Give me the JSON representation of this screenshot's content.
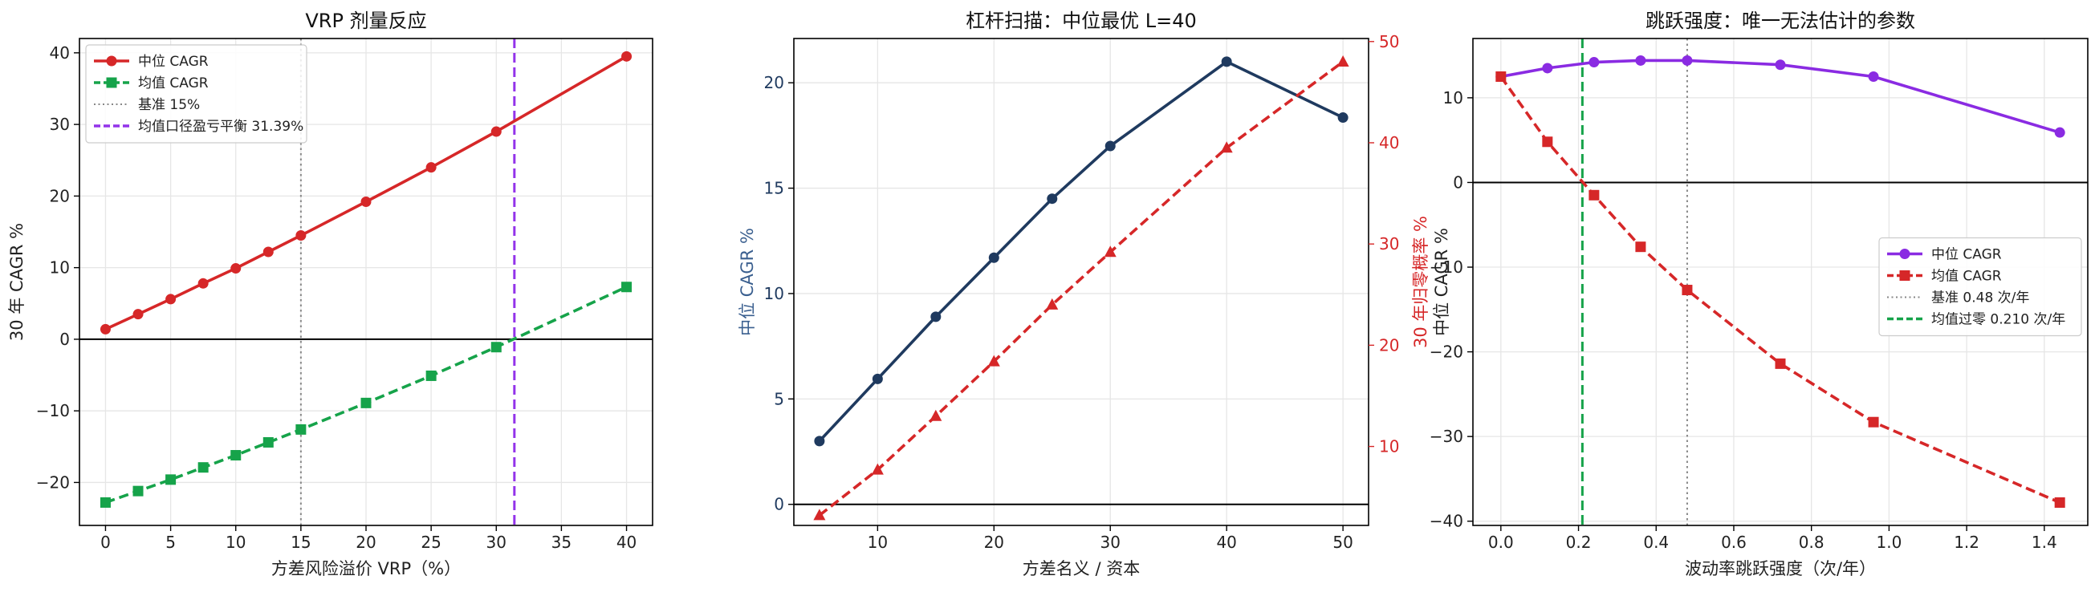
{
  "chart_data": [
    {
      "type": "line",
      "title": "VRP 剂量反应",
      "xlabel": "方差风险溢价 VRP（%）",
      "ylabel": "30 年 CAGR %",
      "xlim": [
        -2,
        42
      ],
      "ylim": [
        -26,
        42
      ],
      "xticks": [
        "0",
        "5",
        "10",
        "15",
        "20",
        "25",
        "30",
        "35",
        "40"
      ],
      "yticks": [
        "−20",
        "−10",
        "0",
        "10",
        "20",
        "30",
        "40"
      ],
      "grid": true,
      "legend_position": "top-left",
      "x": [
        0,
        2.5,
        5,
        7.5,
        10,
        12.5,
        15,
        20,
        25,
        30,
        40
      ],
      "series": [
        {
          "name": "中位 CAGR",
          "color": "#d62728",
          "style": "solid",
          "marker": "circle",
          "values": [
            1.4,
            3.5,
            5.6,
            7.8,
            9.9,
            12.2,
            14.5,
            19.2,
            24.0,
            29.0,
            39.5
          ]
        },
        {
          "name": "均值 CAGR",
          "color": "#16a34a",
          "style": "dashed",
          "marker": "square",
          "values": [
            -22.8,
            -21.2,
            -19.6,
            -17.9,
            -16.2,
            -14.4,
            -12.6,
            -8.9,
            -5.1,
            -1.1,
            7.3
          ]
        }
      ],
      "reference_lines": [
        {
          "name": "基准 15%",
          "orientation": "vertical",
          "value": 15,
          "color": "#888888",
          "style": "dotted"
        },
        {
          "name": "均值口径盈亏平衡 31.39%",
          "orientation": "vertical",
          "value": 31.39,
          "color": "#9333ea",
          "style": "dashed"
        },
        {
          "name": "",
          "orientation": "horizontal",
          "value": 0,
          "color": "#000000",
          "style": "solid"
        }
      ]
    },
    {
      "type": "line",
      "title": "杠杆扫描：中位最优 L=40",
      "xlabel": "方差名义 / 资本",
      "ylabel": "中位 CAGR %",
      "ylabel_right": "30 年归零概率 %",
      "xlim": [
        2.8,
        52.2
      ],
      "ylim": [
        -1.0,
        22.1
      ],
      "ylim_right": [
        2.2,
        50.3
      ],
      "xticks": [
        "10",
        "20",
        "30",
        "40",
        "50"
      ],
      "yticks": [
        "0",
        "5",
        "10",
        "15",
        "20"
      ],
      "yticks_right": [
        "10",
        "20",
        "30",
        "40",
        "50"
      ],
      "grid": true,
      "x": [
        5,
        10,
        15,
        20,
        25,
        30,
        40,
        50
      ],
      "series": [
        {
          "name": "中位 CAGR",
          "axis": "left",
          "color": "#1f3a5f",
          "style": "solid",
          "marker": "circle",
          "values": [
            3.0,
            5.95,
            8.9,
            11.7,
            14.5,
            17.0,
            21.0,
            18.35
          ]
        },
        {
          "name": "30 年归零概率",
          "axis": "right",
          "color": "#d62728",
          "style": "dashed",
          "marker": "triangle",
          "values": [
            3.2,
            7.7,
            13.0,
            18.4,
            24.0,
            29.2,
            39.5,
            48.0
          ]
        }
      ],
      "reference_lines": [
        {
          "name": "",
          "orientation": "horizontal",
          "value": 0,
          "color": "#000000",
          "style": "solid"
        }
      ]
    },
    {
      "type": "line",
      "title": "跳跃强度：唯一无法估计的参数",
      "xlabel": "波动率跳跃强度（次/年）",
      "ylabel": "中位 CAGR %",
      "xlim": [
        -0.072,
        1.512
      ],
      "ylim": [
        -40.5,
        17.0
      ],
      "xticks": [
        "0.0",
        "0.2",
        "0.4",
        "0.6",
        "0.8",
        "1.0",
        "1.2",
        "1.4"
      ],
      "yticks": [
        "−40",
        "−30",
        "−20",
        "−10",
        "0",
        "10"
      ],
      "grid": true,
      "legend_position": "center-right",
      "x": [
        0.0,
        0.12,
        0.24,
        0.36,
        0.48,
        0.72,
        0.96,
        1.44
      ],
      "series": [
        {
          "name": "中位 CAGR",
          "color": "#8a2be2",
          "style": "solid",
          "marker": "circle",
          "values": [
            12.5,
            13.5,
            14.2,
            14.4,
            14.4,
            13.9,
            12.5,
            5.9
          ]
        },
        {
          "name": "均值 CAGR",
          "color": "#d62728",
          "style": "dashed",
          "marker": "square",
          "values": [
            12.5,
            4.8,
            -1.5,
            -7.6,
            -12.7,
            -21.4,
            -28.3,
            -37.8
          ]
        }
      ],
      "reference_lines": [
        {
          "name": "基准 0.48 次/年",
          "orientation": "vertical",
          "value": 0.48,
          "color": "#888888",
          "style": "dotted"
        },
        {
          "name": "均值过零 0.210 次/年",
          "orientation": "vertical",
          "value": 0.21,
          "color": "#16a34a",
          "style": "dashed"
        },
        {
          "name": "",
          "orientation": "horizontal",
          "value": 0,
          "color": "#000000",
          "style": "solid"
        }
      ]
    }
  ]
}
